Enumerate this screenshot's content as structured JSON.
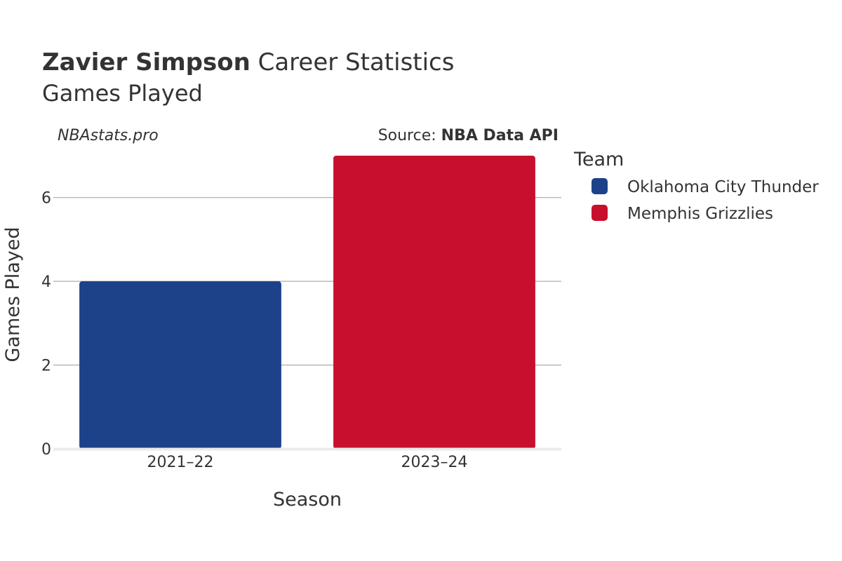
{
  "title": {
    "player": "Zavier Simpson",
    "rest": "Career Statistics",
    "subtitle": "Games Played"
  },
  "watermark": "NBAstats.pro",
  "source": {
    "prefix": "Source: ",
    "name": "NBA Data API"
  },
  "chart_data": {
    "type": "bar",
    "categories": [
      "2021–22",
      "2023–24"
    ],
    "series": [
      {
        "name": "Oklahoma City Thunder",
        "color": "#1d428a",
        "values": [
          4,
          null
        ]
      },
      {
        "name": "Memphis Grizzlies",
        "color": "#c8102e",
        "values": [
          null,
          7
        ]
      }
    ],
    "xlabel": "Season",
    "ylabel": "Games Played",
    "ylim": [
      0,
      7
    ],
    "yticks": [
      0,
      2,
      4,
      6
    ],
    "grid": true,
    "legend_title": "Team",
    "legend_position": "right"
  }
}
